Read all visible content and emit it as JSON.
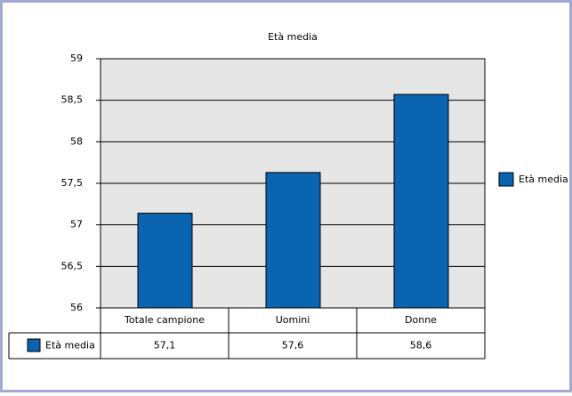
{
  "chart_data": {
    "type": "bar",
    "title": "Età media",
    "categories": [
      "Totale campione",
      "Uomini",
      "Donne"
    ],
    "series": [
      {
        "name": "Età media",
        "color": "#0b64b0",
        "values": [
          57.14,
          57.63,
          58.57
        ],
        "value_labels": [
          "57,1",
          "57,6",
          "58,6"
        ]
      }
    ],
    "ylim": [
      56,
      59
    ],
    "yticks": [
      56,
      {
        "value": 56.5,
        "label": "56,5"
      },
      57,
      {
        "value": 57.5,
        "label": "57,5"
      },
      58,
      {
        "value": 58.5,
        "label": "58,5"
      },
      59
    ],
    "grid": true,
    "legend": "right"
  }
}
